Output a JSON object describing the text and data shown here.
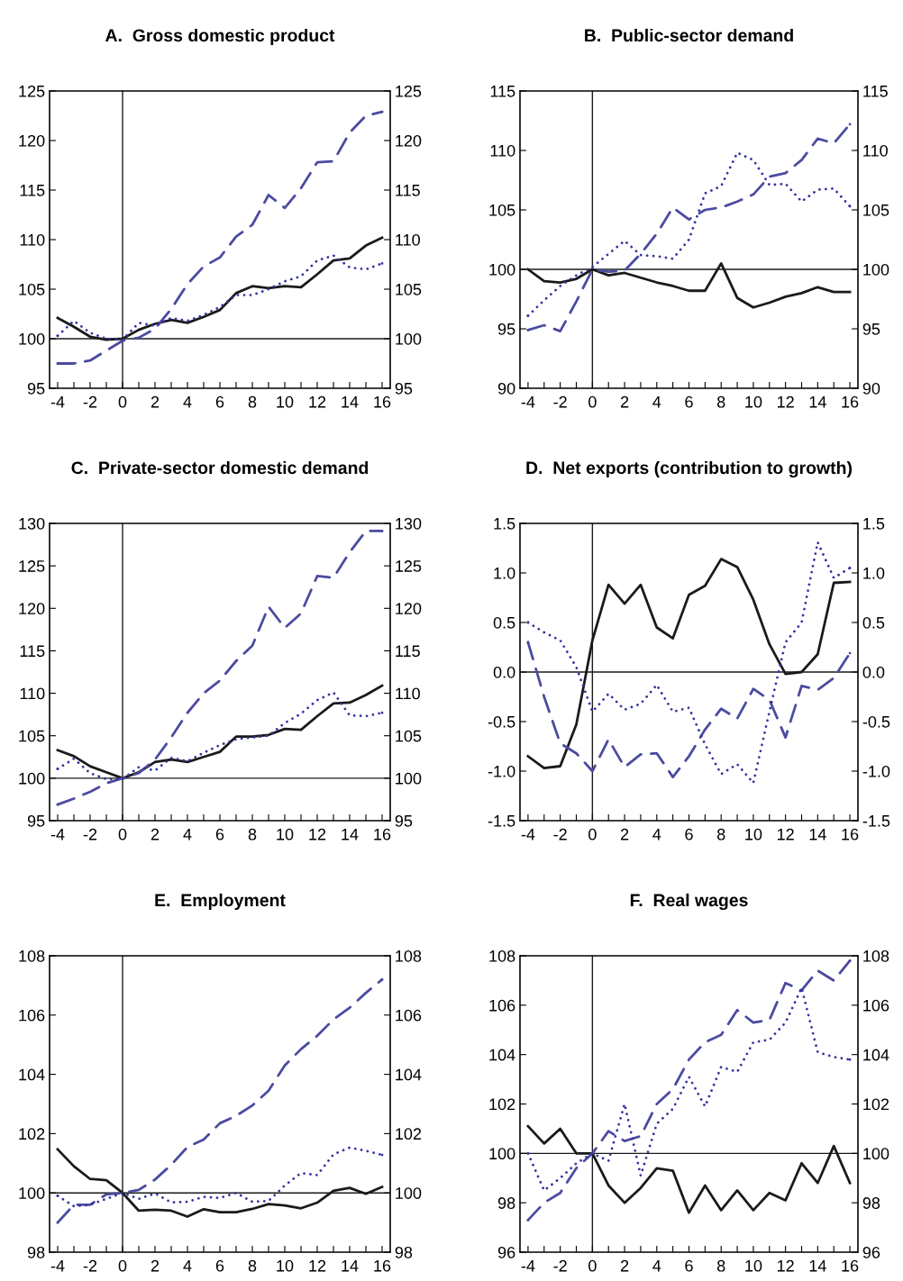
{
  "chart_data": [
    {
      "type": "line",
      "title": "A.  Gross domestic product",
      "x": [
        -4,
        -3,
        -2,
        -1,
        0,
        1,
        2,
        3,
        4,
        5,
        6,
        7,
        8,
        9,
        10,
        11,
        12,
        13,
        14,
        15,
        16
      ],
      "xlim": [
        -4.5,
        16.5
      ],
      "xticks": [
        -4,
        {
          "value": -3,
          "label": null
        },
        -2,
        {
          "value": -1,
          "label": null
        },
        0,
        {
          "value": 1,
          "label": null
        },
        2,
        {
          "value": 3,
          "label": null
        },
        4,
        {
          "value": 5,
          "label": null
        },
        6,
        {
          "value": 7,
          "label": null
        },
        8,
        {
          "value": 9,
          "label": null
        },
        10,
        {
          "value": 11,
          "label": null
        },
        12,
        {
          "value": 13,
          "label": null
        },
        14,
        {
          "value": 15,
          "label": null
        },
        16
      ],
      "ylim": [
        95,
        125
      ],
      "yticks": [
        95,
        100,
        105,
        110,
        115,
        120,
        125
      ],
      "y2lim": [
        95,
        125
      ],
      "y2ticks": [
        95,
        100,
        105,
        110,
        115,
        120,
        125
      ],
      "series": [
        {
          "color": "#1a1a1a",
          "line_style": "solid",
          "values": [
            102.1,
            101.2,
            100.2,
            99.9,
            100.0,
            100.9,
            101.5,
            101.9,
            101.6,
            102.2,
            102.9,
            104.6,
            105.3,
            105.1,
            105.3,
            105.2,
            106.5,
            107.9,
            108.1,
            109.4,
            110.2
          ]
        },
        {
          "color": "#4b4ba0",
          "line_style": "dashed",
          "values": [
            97.5,
            97.5,
            97.8,
            98.8,
            99.8,
            100.1,
            101.0,
            103.0,
            105.5,
            107.3,
            108.2,
            110.3,
            111.5,
            114.5,
            113.2,
            115.2,
            117.8,
            117.9,
            120.8,
            122.5,
            122.9
          ]
        },
        {
          "color": "#3434a0",
          "line_style": "dotted",
          "values": [
            100.3,
            101.8,
            100.6,
            100.0,
            99.9,
            101.6,
            101.3,
            102.1,
            101.8,
            102.4,
            103.2,
            104.4,
            104.4,
            105.0,
            105.8,
            106.3,
            107.9,
            108.4,
            107.2,
            107.0,
            107.6
          ]
        }
      ],
      "ref_lines": [
        {
          "axis": "x",
          "value": 0,
          "color": "#1a1a1a"
        },
        {
          "axis": "y",
          "value": 100,
          "color": "#1a1a1a"
        }
      ]
    },
    {
      "type": "line",
      "title": "B.  Public-sector demand",
      "x": [
        -4,
        -3,
        -2,
        -1,
        0,
        1,
        2,
        3,
        4,
        5,
        6,
        7,
        8,
        9,
        10,
        11,
        12,
        13,
        14,
        15,
        16
      ],
      "xlim": [
        -4.5,
        16.5
      ],
      "xticks": [
        -4,
        {
          "value": -3,
          "label": null
        },
        -2,
        {
          "value": -1,
          "label": null
        },
        0,
        {
          "value": 1,
          "label": null
        },
        2,
        {
          "value": 3,
          "label": null
        },
        4,
        {
          "value": 5,
          "label": null
        },
        6,
        {
          "value": 7,
          "label": null
        },
        8,
        {
          "value": 9,
          "label": null
        },
        10,
        {
          "value": 11,
          "label": null
        },
        12,
        {
          "value": 13,
          "label": null
        },
        14,
        {
          "value": 15,
          "label": null
        },
        16
      ],
      "ylim": [
        90,
        115
      ],
      "yticks": [
        90,
        95,
        100,
        105,
        110,
        115
      ],
      "y2lim": [
        90,
        115
      ],
      "y2ticks": [
        90,
        95,
        100,
        105,
        110,
        115
      ],
      "series": [
        {
          "color": "#1a1a1a",
          "line_style": "solid",
          "values": [
            100.0,
            99.0,
            98.9,
            99.2,
            100.0,
            99.5,
            99.7,
            99.3,
            98.9,
            98.6,
            98.2,
            98.2,
            100.5,
            97.6,
            96.8,
            97.2,
            97.7,
            98.0,
            98.5,
            98.1,
            98.1
          ]
        },
        {
          "color": "#4b4ba0",
          "line_style": "dashed",
          "values": [
            94.9,
            95.3,
            94.8,
            97.3,
            100.0,
            99.8,
            99.9,
            101.3,
            103.0,
            105.2,
            104.2,
            105.0,
            105.2,
            105.7,
            106.3,
            107.8,
            108.1,
            109.2,
            111.0,
            110.6,
            112.2
          ]
        },
        {
          "color": "#3434a0",
          "line_style": "dotted",
          "values": [
            96.1,
            97.4,
            98.6,
            99.5,
            100.2,
            101.3,
            102.4,
            101.2,
            101.1,
            100.9,
            102.5,
            106.4,
            107.0,
            109.8,
            109.2,
            107.1,
            107.2,
            105.7,
            106.7,
            106.8,
            105.3
          ]
        }
      ],
      "ref_lines": [
        {
          "axis": "x",
          "value": 0,
          "color": "#1a1a1a"
        },
        {
          "axis": "y",
          "value": 100,
          "color": "#1a1a1a"
        }
      ]
    },
    {
      "type": "line",
      "title": "C.  Private-sector domestic demand",
      "x": [
        -4,
        -3,
        -2,
        -1,
        0,
        1,
        2,
        3,
        4,
        5,
        6,
        7,
        8,
        9,
        10,
        11,
        12,
        13,
        14,
        15,
        16
      ],
      "xlim": [
        -4.5,
        16.5
      ],
      "xticks": [
        -4,
        {
          "value": -3,
          "label": null
        },
        -2,
        {
          "value": -1,
          "label": null
        },
        0,
        {
          "value": 1,
          "label": null
        },
        2,
        {
          "value": 3,
          "label": null
        },
        4,
        {
          "value": 5,
          "label": null
        },
        6,
        {
          "value": 7,
          "label": null
        },
        8,
        {
          "value": 9,
          "label": null
        },
        10,
        {
          "value": 11,
          "label": null
        },
        12,
        {
          "value": 13,
          "label": null
        },
        14,
        {
          "value": 15,
          "label": null
        },
        16
      ],
      "ylim": [
        95,
        130
      ],
      "yticks": [
        95,
        100,
        105,
        110,
        115,
        120,
        125,
        130
      ],
      "y2lim": [
        95,
        130
      ],
      "y2ticks": [
        95,
        100,
        105,
        110,
        115,
        120,
        125,
        130
      ],
      "series": [
        {
          "color": "#1a1a1a",
          "line_style": "solid",
          "values": [
            103.3,
            102.6,
            101.4,
            100.7,
            100.0,
            100.7,
            101.9,
            102.2,
            101.9,
            102.5,
            103.1,
            104.9,
            104.9,
            105.1,
            105.8,
            105.7,
            107.3,
            108.8,
            108.9,
            109.8,
            110.9
          ]
        },
        {
          "color": "#4b4ba0",
          "line_style": "dashed",
          "values": [
            96.9,
            97.6,
            98.4,
            99.4,
            100.0,
            100.6,
            102.2,
            104.8,
            107.7,
            110.0,
            111.5,
            113.8,
            115.6,
            120.2,
            117.7,
            119.4,
            123.8,
            123.6,
            126.6,
            129.1,
            129.1
          ]
        },
        {
          "color": "#3434a0",
          "line_style": "dotted",
          "values": [
            101.1,
            102.3,
            100.6,
            99.9,
            99.9,
            101.3,
            100.9,
            102.4,
            102.0,
            103.0,
            103.9,
            104.6,
            104.8,
            105.0,
            106.5,
            107.6,
            109.2,
            110.1,
            107.4,
            107.3,
            107.7
          ]
        }
      ],
      "ref_lines": [
        {
          "axis": "x",
          "value": 0,
          "color": "#1a1a1a"
        },
        {
          "axis": "y",
          "value": 100,
          "color": "#1a1a1a"
        }
      ]
    },
    {
      "type": "line",
      "title": "D.  Net exports (contribution to growth)",
      "x": [
        -4,
        -3,
        -2,
        -1,
        0,
        1,
        2,
        3,
        4,
        5,
        6,
        7,
        8,
        9,
        10,
        11,
        12,
        13,
        14,
        15,
        16
      ],
      "xlim": [
        -4.5,
        16.5
      ],
      "xticks": [
        -4,
        {
          "value": -3,
          "label": null
        },
        -2,
        {
          "value": -1,
          "label": null
        },
        0,
        {
          "value": 1,
          "label": null
        },
        2,
        {
          "value": 3,
          "label": null
        },
        4,
        {
          "value": 5,
          "label": null
        },
        6,
        {
          "value": 7,
          "label": null
        },
        8,
        {
          "value": 9,
          "label": null
        },
        10,
        {
          "value": 11,
          "label": null
        },
        12,
        {
          "value": 13,
          "label": null
        },
        14,
        {
          "value": 15,
          "label": null
        },
        16
      ],
      "ylim": [
        -1.5,
        1.5
      ],
      "yticks": [
        {
          "value": -1.5,
          "label": "-1.5"
        },
        {
          "value": -1.0,
          "label": "-1.0"
        },
        {
          "value": -0.5,
          "label": "-0.5"
        },
        {
          "value": 0,
          "label": "0.0"
        },
        {
          "value": 0.5,
          "label": "0.5"
        },
        {
          "value": 1.0,
          "label": "1.0"
        },
        {
          "value": 1.5,
          "label": "1.5"
        }
      ],
      "y2lim": [
        -1.5,
        1.5
      ],
      "y2ticks": [
        {
          "value": -1.5,
          "label": "-1.5"
        },
        {
          "value": -1.0,
          "label": "-1.0"
        },
        {
          "value": -0.5,
          "label": "-0.5"
        },
        {
          "value": 0,
          "label": "0.0"
        },
        {
          "value": 0.5,
          "label": "0.5"
        },
        {
          "value": 1.0,
          "label": "1.0"
        },
        {
          "value": 1.5,
          "label": "1.5"
        }
      ],
      "series": [
        {
          "color": "#1a1a1a",
          "line_style": "solid",
          "values": [
            -0.85,
            -0.97,
            -0.95,
            -0.53,
            0.32,
            0.88,
            0.69,
            0.88,
            0.45,
            0.34,
            0.78,
            0.87,
            1.14,
            1.06,
            0.73,
            0.28,
            -0.02,
            0.0,
            0.18,
            0.9,
            0.91
          ]
        },
        {
          "color": "#4b4ba0",
          "line_style": "dashed",
          "values": [
            0.3,
            -0.25,
            -0.72,
            -0.82,
            -1.0,
            -0.68,
            -0.96,
            -0.83,
            -0.82,
            -1.06,
            -0.85,
            -0.58,
            -0.37,
            -0.47,
            -0.17,
            -0.28,
            -0.66,
            -0.14,
            -0.18,
            -0.06,
            0.19
          ]
        },
        {
          "color": "#3434a0",
          "line_style": "dotted",
          "values": [
            0.5,
            0.4,
            0.32,
            0.05,
            -0.4,
            -0.22,
            -0.38,
            -0.32,
            -0.13,
            -0.4,
            -0.36,
            -0.73,
            -1.03,
            -0.93,
            -1.12,
            -0.4,
            0.3,
            0.5,
            1.31,
            0.95,
            1.05
          ]
        }
      ],
      "ref_lines": [
        {
          "axis": "x",
          "value": 0,
          "color": "#1a1a1a"
        },
        {
          "axis": "y",
          "value": 0,
          "color": "#1a1a1a"
        }
      ]
    },
    {
      "type": "line",
      "title": "E.  Employment",
      "x": [
        -4,
        -3,
        -2,
        -1,
        0,
        1,
        2,
        3,
        4,
        5,
        6,
        7,
        8,
        9,
        10,
        11,
        12,
        13,
        14,
        15,
        16
      ],
      "xlim": [
        -4.5,
        16.5
      ],
      "xticks": [
        -4,
        {
          "value": -3,
          "label": null
        },
        -2,
        {
          "value": -1,
          "label": null
        },
        0,
        {
          "value": 1,
          "label": null
        },
        2,
        {
          "value": 3,
          "label": null
        },
        4,
        {
          "value": 5,
          "label": null
        },
        6,
        {
          "value": 7,
          "label": null
        },
        8,
        {
          "value": 9,
          "label": null
        },
        10,
        {
          "value": 11,
          "label": null
        },
        12,
        {
          "value": 13,
          "label": null
        },
        14,
        {
          "value": 15,
          "label": null
        },
        16
      ],
      "ylim": [
        98,
        108
      ],
      "yticks": [
        98,
        100,
        102,
        104,
        106,
        108
      ],
      "y2lim": [
        98,
        108
      ],
      "y2ticks": [
        98,
        100,
        102,
        104,
        106,
        108
      ],
      "series": [
        {
          "color": "#1a1a1a",
          "line_style": "solid",
          "values": [
            101.47,
            100.9,
            100.47,
            100.43,
            100.0,
            99.4,
            99.43,
            99.4,
            99.2,
            99.45,
            99.35,
            99.35,
            99.46,
            99.62,
            99.58,
            99.48,
            99.67,
            100.07,
            100.17,
            99.97,
            100.2
          ]
        },
        {
          "color": "#4b4ba0",
          "line_style": "dashed",
          "values": [
            99.0,
            99.6,
            99.6,
            99.95,
            100.0,
            100.1,
            100.45,
            100.95,
            101.55,
            101.8,
            102.35,
            102.6,
            102.95,
            103.45,
            104.3,
            104.85,
            105.3,
            105.85,
            106.25,
            106.75,
            107.2
          ]
        },
        {
          "color": "#3434a0",
          "line_style": "dotted",
          "values": [
            99.9,
            99.55,
            99.6,
            99.8,
            100.0,
            99.8,
            99.98,
            99.68,
            99.7,
            99.87,
            99.83,
            100.0,
            99.7,
            99.73,
            100.25,
            100.67,
            100.6,
            101.3,
            101.53,
            101.42,
            101.28
          ]
        }
      ],
      "ref_lines": [
        {
          "axis": "x",
          "value": 0,
          "color": "#1a1a1a"
        },
        {
          "axis": "y",
          "value": 100,
          "color": "#1a1a1a"
        }
      ]
    },
    {
      "type": "line",
      "title": "F.  Real wages",
      "x": [
        -4,
        -3,
        -2,
        -1,
        0,
        1,
        2,
        3,
        4,
        5,
        6,
        7,
        8,
        9,
        10,
        11,
        12,
        13,
        14,
        15,
        16
      ],
      "xlim": [
        -4.5,
        16.5
      ],
      "xticks": [
        -4,
        {
          "value": -3,
          "label": null
        },
        -2,
        {
          "value": -1,
          "label": null
        },
        0,
        {
          "value": 1,
          "label": null
        },
        2,
        {
          "value": 3,
          "label": null
        },
        4,
        {
          "value": 5,
          "label": null
        },
        6,
        {
          "value": 7,
          "label": null
        },
        8,
        {
          "value": 9,
          "label": null
        },
        10,
        {
          "value": 11,
          "label": null
        },
        12,
        {
          "value": 13,
          "label": null
        },
        14,
        {
          "value": 15,
          "label": null
        },
        16
      ],
      "ylim": [
        96,
        108
      ],
      "yticks": [
        96,
        98,
        100,
        102,
        104,
        106,
        108
      ],
      "y2lim": [
        96,
        108
      ],
      "y2ticks": [
        96,
        98,
        100,
        102,
        104,
        106,
        108
      ],
      "series": [
        {
          "color": "#1a1a1a",
          "line_style": "solid",
          "values": [
            101.1,
            100.4,
            101.0,
            100.0,
            100.0,
            98.7,
            98.0,
            98.6,
            99.4,
            99.3,
            97.6,
            98.7,
            97.7,
            98.5,
            97.7,
            98.4,
            98.1,
            99.6,
            98.8,
            100.3,
            98.8
          ]
        },
        {
          "color": "#4b4ba0",
          "line_style": "dashed",
          "values": [
            97.3,
            98.0,
            98.4,
            99.4,
            100.0,
            100.9,
            100.5,
            100.7,
            102.0,
            102.6,
            103.8,
            104.5,
            104.8,
            105.8,
            105.3,
            105.4,
            106.9,
            106.6,
            107.4,
            107.0,
            107.8
          ]
        },
        {
          "color": "#3434a0",
          "line_style": "dotted",
          "values": [
            100.0,
            98.5,
            99.0,
            99.6,
            100.0,
            99.7,
            102.0,
            99.1,
            101.2,
            101.8,
            103.1,
            101.9,
            103.5,
            103.3,
            104.5,
            104.6,
            105.3,
            106.7,
            104.1,
            103.9,
            103.8
          ]
        }
      ],
      "ref_lines": [
        {
          "axis": "x",
          "value": 0,
          "color": "#1a1a1a"
        },
        {
          "axis": "y",
          "value": 100,
          "color": "#1a1a1a"
        }
      ]
    }
  ]
}
